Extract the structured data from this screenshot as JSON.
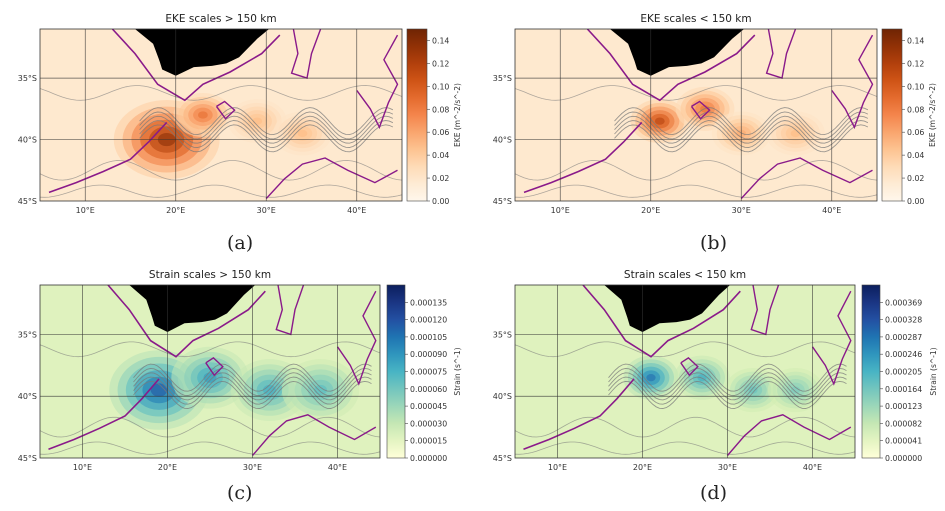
{
  "panels": [
    {
      "caption": "(a)",
      "chart_data": {
        "type": "heatmap",
        "title": "EKE scales > 150 km",
        "colorbar_label": "EKE (m^-2/s^-2)",
        "colorbar_ticks": [
          "0.14",
          "0.12",
          "0.10",
          "0.08",
          "0.06",
          "0.04",
          "0.02",
          "0.00"
        ],
        "colorbar_range": [
          0,
          0.15
        ],
        "colormap": "orange",
        "x_ticks": [
          "10°E",
          "20°E",
          "30°E",
          "40°E"
        ],
        "y_ticks": [
          "35°S",
          "40°S",
          "45°S"
        ],
        "xlim": [
          5,
          45
        ],
        "ylim": [
          -45,
          -31
        ],
        "grid": true,
        "hotspots": [
          {
            "lon": 19,
            "lat": -40,
            "value": 0.14,
            "spread": 4.5
          },
          {
            "lon": 23,
            "lat": -38,
            "value": 0.09,
            "spread": 2.5
          },
          {
            "lon": 29,
            "lat": -38.5,
            "value": 0.05,
            "spread": 2.5
          },
          {
            "lon": 34,
            "lat": -39.5,
            "value": 0.05,
            "spread": 2.5
          }
        ]
      }
    },
    {
      "caption": "(b)",
      "chart_data": {
        "type": "heatmap",
        "title": "EKE scales < 150 km",
        "colorbar_label": "EKE (m^-2/s^-2)",
        "colorbar_ticks": [
          "0.14",
          "0.12",
          "0.10",
          "0.08",
          "0.06",
          "0.04",
          "0.02",
          "0.00"
        ],
        "colorbar_range": [
          0,
          0.15
        ],
        "colormap": "orange",
        "x_ticks": [
          "10°E",
          "20°E",
          "30°E",
          "40°E"
        ],
        "y_ticks": [
          "35°S",
          "40°S",
          "45°S"
        ],
        "xlim": [
          5,
          45
        ],
        "ylim": [
          -45,
          -31
        ],
        "grid": true,
        "hotspots": [
          {
            "lon": 21,
            "lat": -38.5,
            "value": 0.12,
            "spread": 2.5
          },
          {
            "lon": 26,
            "lat": -37.5,
            "value": 0.09,
            "spread": 2.5
          },
          {
            "lon": 30,
            "lat": -39.5,
            "value": 0.06,
            "spread": 2.5
          },
          {
            "lon": 36,
            "lat": -39.5,
            "value": 0.05,
            "spread": 2.5
          }
        ]
      }
    },
    {
      "caption": "(c)",
      "chart_data": {
        "type": "heatmap",
        "title": "Strain scales > 150 km",
        "colorbar_label": "Strain (s^-1)",
        "colorbar_ticks": [
          "0.000135",
          "0.000120",
          "0.000105",
          "0.000090",
          "0.000075",
          "0.000060",
          "0.000045",
          "0.000030",
          "0.000015",
          "0.000000"
        ],
        "colorbar_range": [
          0,
          0.00015
        ],
        "colormap": "ylgnbu",
        "x_ticks": [
          "10°E",
          "20°E",
          "30°E",
          "40°E"
        ],
        "y_ticks": [
          "35°S",
          "40°S",
          "45°S"
        ],
        "xlim": [
          5,
          45
        ],
        "ylim": [
          -45,
          -31
        ],
        "grid": true,
        "hotspots": [
          {
            "lon": 19,
            "lat": -39.5,
            "value": 0.00012,
            "spread": 4.5
          },
          {
            "lon": 25,
            "lat": -38.5,
            "value": 9e-05,
            "spread": 3.5
          },
          {
            "lon": 32,
            "lat": -39.5,
            "value": 8e-05,
            "spread": 3.5
          },
          {
            "lon": 38,
            "lat": -39.5,
            "value": 7e-05,
            "spread": 3.5
          }
        ]
      }
    },
    {
      "caption": "(d)",
      "chart_data": {
        "type": "heatmap",
        "title": "Strain scales < 150 km",
        "colorbar_label": "Strain (s^-1)",
        "colorbar_ticks": [
          "0.000369",
          "0.000328",
          "0.000287",
          "0.000246",
          "0.000205",
          "0.000164",
          "0.000123",
          "0.000082",
          "0.000041",
          "0.000000"
        ],
        "colorbar_range": [
          0,
          0.00041
        ],
        "colormap": "ylgnbu",
        "x_ticks": [
          "10°E",
          "20°E",
          "30°E",
          "40°E"
        ],
        "y_ticks": [
          "35°S",
          "40°S",
          "45°S"
        ],
        "xlim": [
          5,
          45
        ],
        "ylim": [
          -45,
          -31
        ],
        "grid": true,
        "hotspots": [
          {
            "lon": 21,
            "lat": -38.5,
            "value": 0.0003,
            "spread": 2.5
          },
          {
            "lon": 27,
            "lat": -38.5,
            "value": 0.00022,
            "spread": 2.5
          },
          {
            "lon": 33,
            "lat": -39.5,
            "value": 0.00018,
            "spread": 2.5
          },
          {
            "lon": 38,
            "lat": -39.5,
            "value": 0.00016,
            "spread": 2.5
          }
        ]
      }
    }
  ],
  "colors": {
    "coast": "#8a1a8a",
    "land": "#000000",
    "contour": "#7a7a7a",
    "grid": "#333333"
  }
}
